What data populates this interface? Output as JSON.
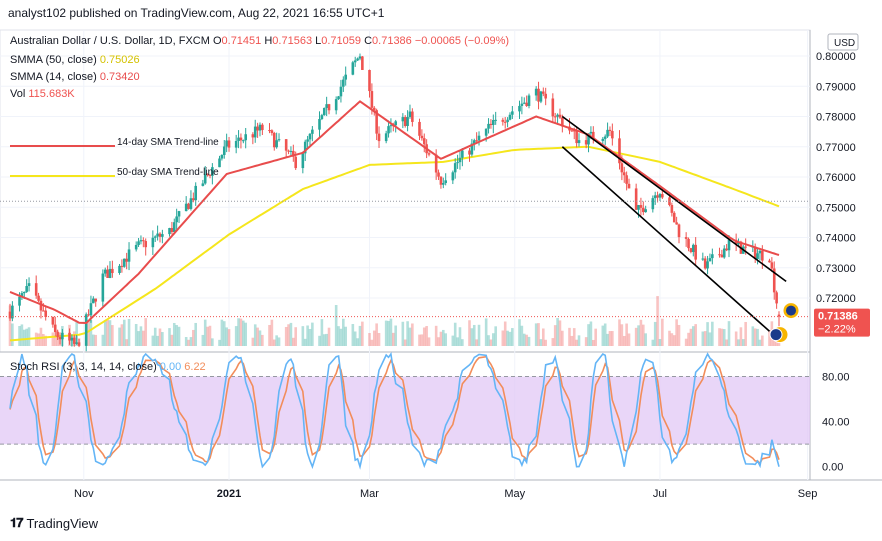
{
  "header": {
    "publisher_line": "analyst102 published on TradingView.com, Aug 22, 2021 16:55 UTC+1"
  },
  "legend": {
    "symbol": "Australian Dollar / U.S. Dollar, 1D, FXCM",
    "ohlc": [
      {
        "k": "O",
        "v": "0.71451"
      },
      {
        "k": "H",
        "v": "0.71563"
      },
      {
        "k": "L",
        "v": "0.71059"
      },
      {
        "k": "C",
        "v": "0.71386"
      }
    ],
    "change": "−0.00065 (−0.09%)",
    "sma50_label": "SMMA (50, close)",
    "sma50_value": "0.75026",
    "sma14_label": "SMMA (14, close)",
    "sma14_value": "0.73420",
    "vol_label": "Vol",
    "vol_value": "115.683K"
  },
  "annotations": {
    "sma14_trend": "14-day SMA Trend-line",
    "sma50_trend": "50-day SMA Trend-line"
  },
  "price_axis": {
    "currency": "USD",
    "ticks": [
      "0.80000",
      "0.79000",
      "0.78000",
      "0.77000",
      "0.76000",
      "0.75000",
      "0.74000",
      "0.73000",
      "0.72000"
    ],
    "last_price": "0.71386",
    "last_change": "−2.22%"
  },
  "rsi": {
    "label": "Stoch RSI (3, 3, 14, 14, close)",
    "k_value": "0.00",
    "d_value": "6.22",
    "ticks": [
      "80.00",
      "40.00",
      "0.00"
    ]
  },
  "time_axis": {
    "labels": [
      "Nov",
      "2021",
      "Mar",
      "May",
      "Jul",
      "Sep"
    ]
  },
  "footer": {
    "brand": "TradingView"
  },
  "colors": {
    "up": "#26a69a",
    "down": "#ef5350",
    "sma14": "#e84c4c",
    "sma50": "#f5e61c",
    "channel": "#000000",
    "rsi_k": "#64b5f6",
    "rsi_d": "#f28d5b",
    "rsi_band": "#e1c8f5"
  },
  "chart_data": {
    "type": "candlestick",
    "symbol": "AUDUSD",
    "interval": "1D",
    "price_range": [
      0.7075,
      0.804
    ],
    "ohlc_last": {
      "open": 0.71451,
      "high": 0.71563,
      "low": 0.71059,
      "close": 0.71386
    },
    "price_path": [
      [
        "2020-10-01",
        0.7155
      ],
      [
        "2020-10-09",
        0.723
      ],
      [
        "2020-10-20",
        0.708
      ],
      [
        "2020-10-29",
        0.704
      ],
      [
        "2020-11-09",
        0.727
      ],
      [
        "2020-11-24",
        0.737
      ],
      [
        "2020-12-07",
        0.742
      ],
      [
        "2020-12-31",
        0.77
      ],
      [
        "2021-01-15",
        0.776
      ],
      [
        "2021-01-29",
        0.765
      ],
      [
        "2021-02-25",
        0.8005
      ],
      [
        "2021-03-05",
        0.773
      ],
      [
        "2021-03-18",
        0.78
      ],
      [
        "2021-03-31",
        0.759
      ],
      [
        "2021-04-20",
        0.776
      ],
      [
        "2021-05-10",
        0.788
      ],
      [
        "2021-05-28",
        0.772
      ],
      [
        "2021-06-10",
        0.775
      ],
      [
        "2021-06-21",
        0.748
      ],
      [
        "2021-07-01",
        0.756
      ],
      [
        "2021-07-09",
        0.742
      ],
      [
        "2021-07-20",
        0.73
      ],
      [
        "2021-07-30",
        0.738
      ],
      [
        "2021-08-09",
        0.735
      ],
      [
        "2021-08-16",
        0.734
      ],
      [
        "2021-08-20",
        0.7139
      ]
    ],
    "smma14_path": [
      [
        "2020-10-01",
        0.722
      ],
      [
        "2020-10-20",
        0.716
      ],
      [
        "2020-11-01",
        0.711
      ],
      [
        "2020-11-24",
        0.728
      ],
      [
        "2020-12-31",
        0.761
      ],
      [
        "2021-02-01",
        0.768
      ],
      [
        "2021-02-25",
        0.785
      ],
      [
        "2021-03-31",
        0.766
      ],
      [
        "2021-05-10",
        0.78
      ],
      [
        "2021-06-01",
        0.774
      ],
      [
        "2021-07-01",
        0.757
      ],
      [
        "2021-08-01",
        0.739
      ],
      [
        "2021-08-20",
        0.7342
      ]
    ],
    "smma50_path": [
      [
        "2020-10-01",
        0.706
      ],
      [
        "2020-11-01",
        0.708
      ],
      [
        "2020-12-01",
        0.723
      ],
      [
        "2021-01-01",
        0.741
      ],
      [
        "2021-02-01",
        0.756
      ],
      [
        "2021-03-01",
        0.764
      ],
      [
        "2021-04-01",
        0.765
      ],
      [
        "2021-05-01",
        0.769
      ],
      [
        "2021-06-01",
        0.77
      ],
      [
        "2021-07-01",
        0.765
      ],
      [
        "2021-08-01",
        0.756
      ],
      [
        "2021-08-20",
        0.7503
      ]
    ],
    "channel_upper": [
      [
        "2021-05-21",
        0.78
      ],
      [
        "2021-08-23",
        0.7255
      ]
    ],
    "channel_lower": [
      [
        "2021-05-21",
        0.77
      ],
      [
        "2021-08-16",
        0.709
      ]
    ],
    "stoch_rsi_last": {
      "k": 0.0,
      "d": 6.22
    },
    "stoch_rsi_levels": [
      80,
      20
    ],
    "stoch_rsi_range": [
      -10,
      100
    ]
  }
}
